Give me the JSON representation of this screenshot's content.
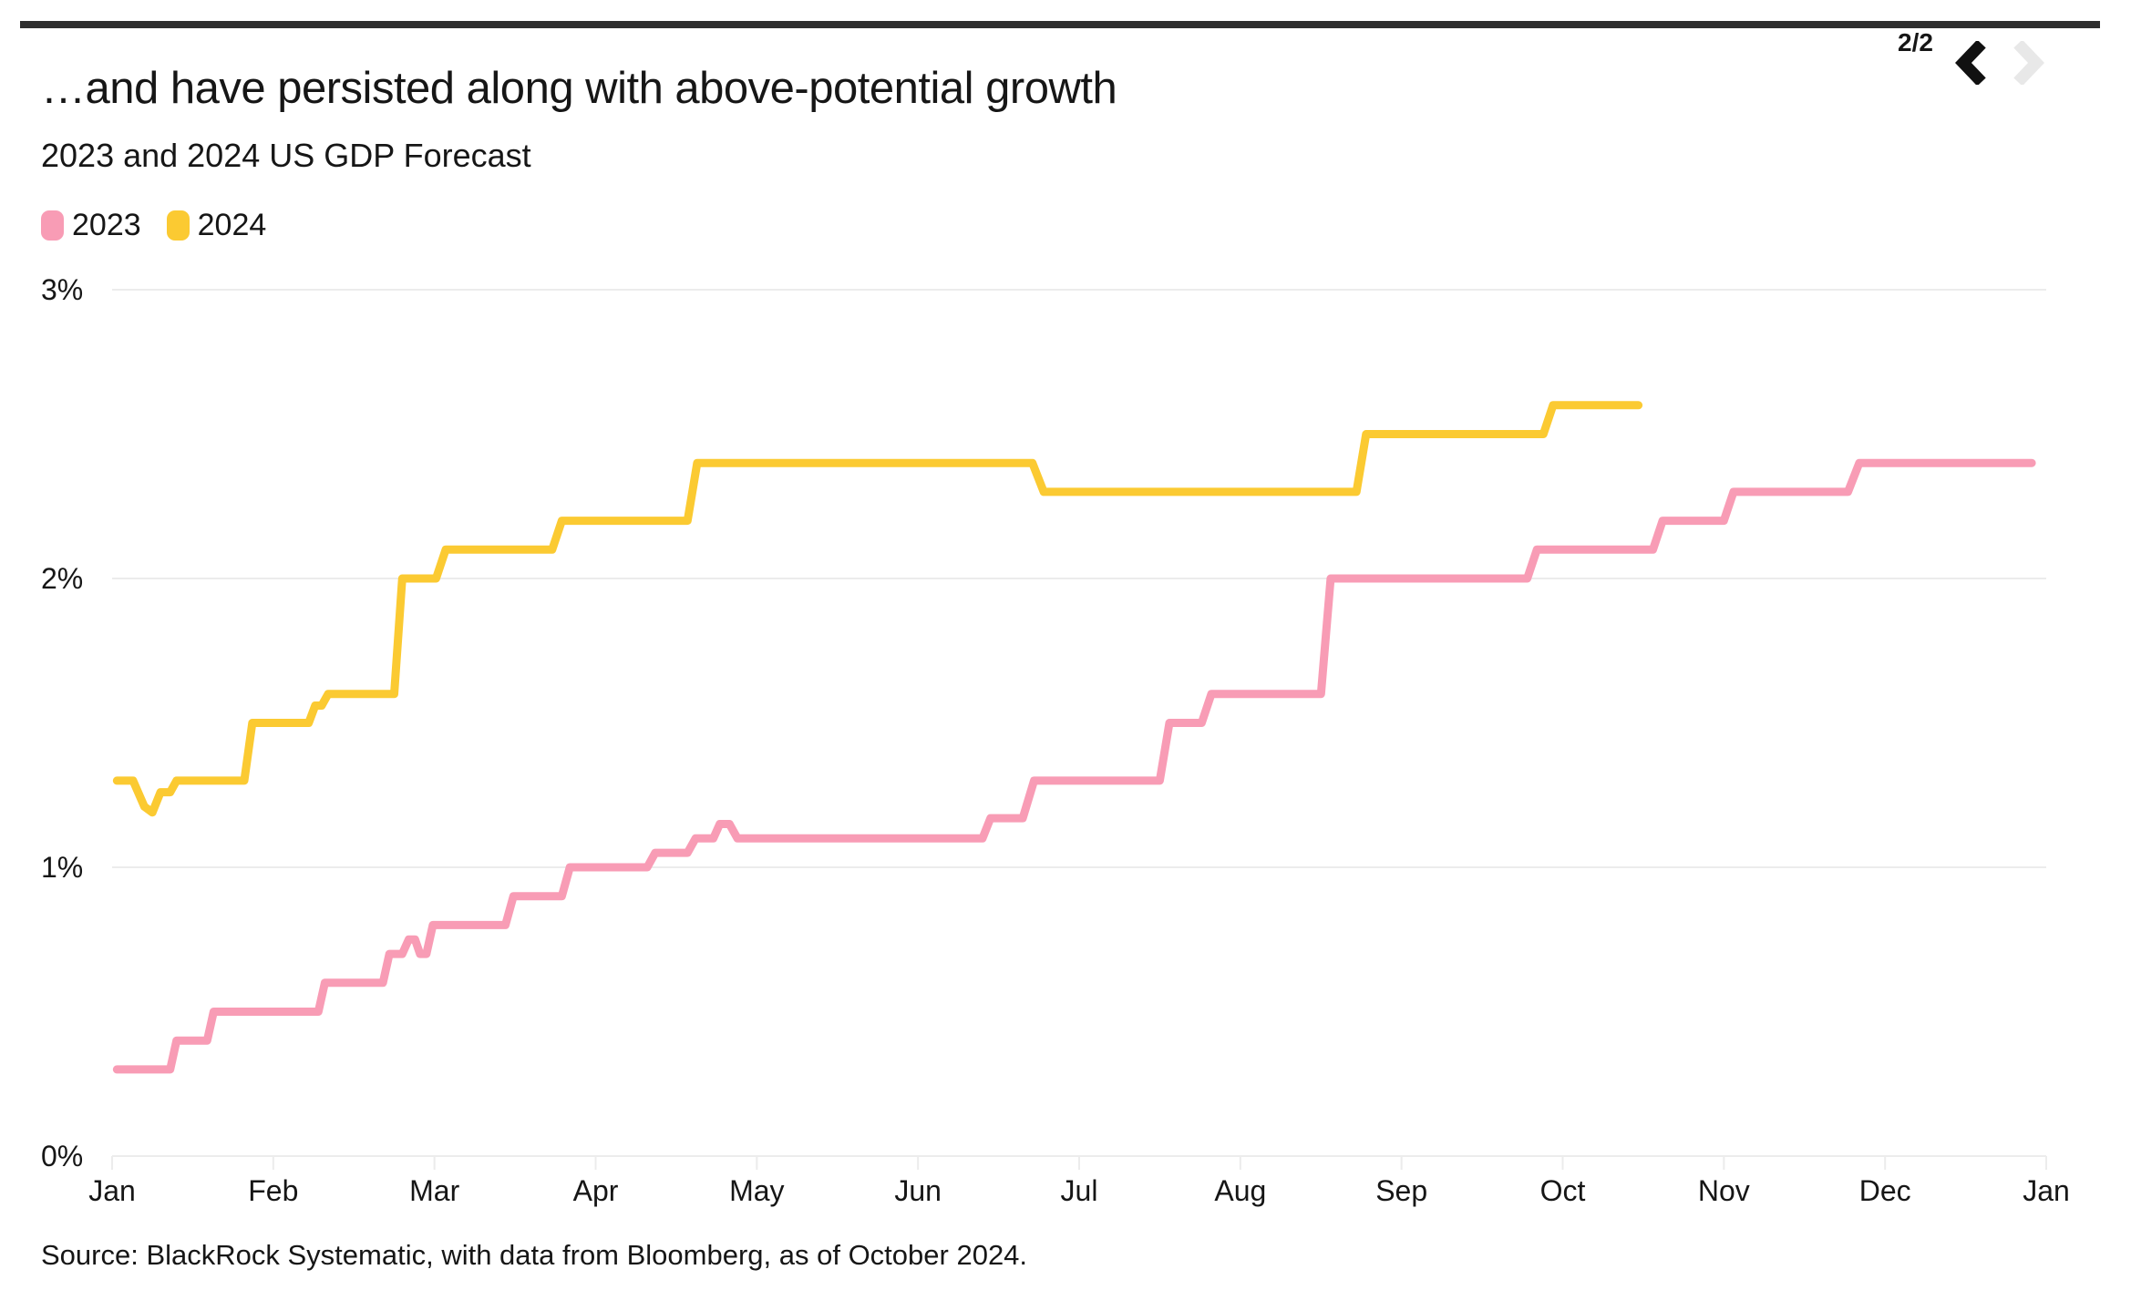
{
  "header": {
    "title": "…and have persisted along with above-potential growth",
    "pagination": "2/2"
  },
  "chart": {
    "subtitle": "2023 and 2024 US GDP Forecast",
    "legend": [
      {
        "label": "2023",
        "color": "#F89CB5"
      },
      {
        "label": "2024",
        "color": "#FBCA32"
      }
    ]
  },
  "chart_data": {
    "type": "line",
    "title": "2023 and 2024 US GDP Forecast",
    "x_unit": "months since Jan 1 (0 = Jan, 12 = following Jan)",
    "xlim": [
      0,
      12
    ],
    "ylim": [
      0,
      3
    ],
    "xticks": [
      "Jan",
      "Feb",
      "Mar",
      "Apr",
      "May",
      "Jun",
      "Jul",
      "Aug",
      "Sep",
      "Oct",
      "Nov",
      "Dec",
      "Jan"
    ],
    "yticks": [
      "0%",
      "1%",
      "2%",
      "3%"
    ],
    "grid": "horizontal",
    "legend_position": "top-left",
    "series": [
      {
        "name": "2023",
        "color": "#F89CB5",
        "points": [
          [
            0.03,
            0.3
          ],
          [
            0.36,
            0.3
          ],
          [
            0.4,
            0.4
          ],
          [
            0.59,
            0.4
          ],
          [
            0.63,
            0.5
          ],
          [
            1.28,
            0.5
          ],
          [
            1.32,
            0.6
          ],
          [
            1.68,
            0.6
          ],
          [
            1.72,
            0.7
          ],
          [
            1.8,
            0.7
          ],
          [
            1.84,
            0.75
          ],
          [
            1.88,
            0.75
          ],
          [
            1.91,
            0.7
          ],
          [
            1.95,
            0.7
          ],
          [
            1.99,
            0.8
          ],
          [
            2.44,
            0.8
          ],
          [
            2.49,
            0.9
          ],
          [
            2.79,
            0.9
          ],
          [
            2.84,
            1.0
          ],
          [
            3.32,
            1.0
          ],
          [
            3.37,
            1.05
          ],
          [
            3.57,
            1.05
          ],
          [
            3.62,
            1.1
          ],
          [
            3.73,
            1.1
          ],
          [
            3.77,
            1.15
          ],
          [
            3.83,
            1.15
          ],
          [
            3.88,
            1.1
          ],
          [
            5.4,
            1.1
          ],
          [
            5.45,
            1.17
          ],
          [
            5.65,
            1.17
          ],
          [
            5.72,
            1.3
          ],
          [
            6.5,
            1.3
          ],
          [
            6.56,
            1.5
          ],
          [
            6.76,
            1.5
          ],
          [
            6.82,
            1.6
          ],
          [
            7.5,
            1.6
          ],
          [
            7.56,
            2.0
          ],
          [
            8.78,
            2.0
          ],
          [
            8.84,
            2.1
          ],
          [
            9.56,
            2.1
          ],
          [
            9.62,
            2.2
          ],
          [
            10.0,
            2.2
          ],
          [
            10.06,
            2.3
          ],
          [
            10.77,
            2.3
          ],
          [
            10.84,
            2.4
          ],
          [
            11.91,
            2.4
          ]
        ]
      },
      {
        "name": "2024",
        "color": "#FBCA32",
        "points": [
          [
            0.03,
            1.3
          ],
          [
            0.13,
            1.3
          ],
          [
            0.2,
            1.21
          ],
          [
            0.25,
            1.19
          ],
          [
            0.3,
            1.26
          ],
          [
            0.36,
            1.26
          ],
          [
            0.4,
            1.3
          ],
          [
            0.82,
            1.3
          ],
          [
            0.87,
            1.5
          ],
          [
            1.22,
            1.5
          ],
          [
            1.26,
            1.56
          ],
          [
            1.3,
            1.56
          ],
          [
            1.34,
            1.6
          ],
          [
            1.75,
            1.6
          ],
          [
            1.8,
            2.0
          ],
          [
            2.01,
            2.0
          ],
          [
            2.07,
            2.1
          ],
          [
            2.73,
            2.1
          ],
          [
            2.79,
            2.2
          ],
          [
            3.57,
            2.2
          ],
          [
            3.63,
            2.4
          ],
          [
            5.71,
            2.4
          ],
          [
            5.78,
            2.3
          ],
          [
            7.72,
            2.3
          ],
          [
            7.78,
            2.5
          ],
          [
            8.88,
            2.5
          ],
          [
            8.94,
            2.6
          ],
          [
            9.47,
            2.6
          ]
        ]
      }
    ]
  },
  "source": "Source: BlackRock Systematic, with data from Bloomberg, as of October 2024.",
  "colors": {
    "background": "#FFFFFF",
    "text": "#161616",
    "grid": "#ECECEC",
    "divider": "#2E2E2E",
    "nav_active": "#111111",
    "nav_disabled": "#E8E8E8"
  }
}
